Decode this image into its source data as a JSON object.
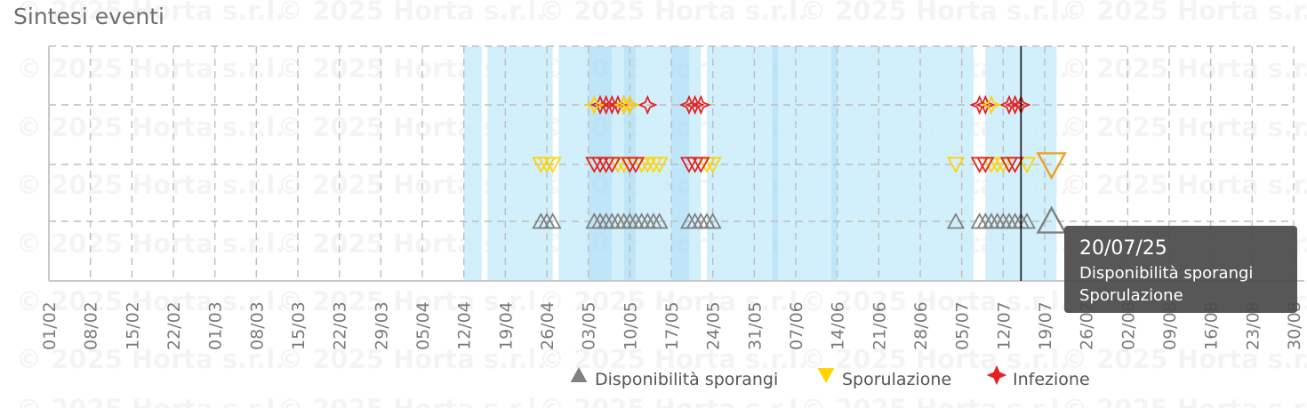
{
  "chart_data": {
    "type": "scatter",
    "title": "Sintesi eventi",
    "watermark": "© 2025 Horta s.r.l.",
    "x_axis": {
      "start": "2025-02-01",
      "end": "2025-08-30",
      "tick_labels": [
        "01/02",
        "08/02",
        "15/02",
        "22/02",
        "01/03",
        "08/03",
        "15/03",
        "22/03",
        "29/03",
        "05/04",
        "12/04",
        "19/04",
        "26/04",
        "03/05",
        "10/05",
        "17/05",
        "24/05",
        "31/05",
        "07/06",
        "14/06",
        "21/06",
        "28/06",
        "05/07",
        "12/07",
        "19/07",
        "26/07",
        "02/08",
        "09/08",
        "16/08",
        "23/08",
        "30/08"
      ]
    },
    "y_rows": 4,
    "grid": true,
    "legend_position": "bottom-right",
    "current_date": "2025-07-15",
    "shaded_periods": [
      {
        "start": "2025-04-12",
        "end": "2025-04-15",
        "strong": false
      },
      {
        "start": "2025-04-16",
        "end": "2025-04-27",
        "strong": false
      },
      {
        "start": "2025-04-28",
        "end": "2025-05-03",
        "strong": false
      },
      {
        "start": "2025-05-03",
        "end": "2025-05-07",
        "strong": true
      },
      {
        "start": "2025-05-07",
        "end": "2025-05-09",
        "strong": false
      },
      {
        "start": "2025-05-09",
        "end": "2025-05-11",
        "strong": true
      },
      {
        "start": "2025-05-11",
        "end": "2025-05-17",
        "strong": false
      },
      {
        "start": "2025-05-17",
        "end": "2025-05-20",
        "strong": true
      },
      {
        "start": "2025-05-20",
        "end": "2025-05-22",
        "strong": false
      },
      {
        "start": "2025-05-23",
        "end": "2025-06-03",
        "strong": false
      },
      {
        "start": "2025-06-03",
        "end": "2025-06-04",
        "strong": true
      },
      {
        "start": "2025-06-04",
        "end": "2025-06-13",
        "strong": false
      },
      {
        "start": "2025-06-13",
        "end": "2025-06-14",
        "strong": true
      },
      {
        "start": "2025-06-14",
        "end": "2025-07-07",
        "strong": false
      },
      {
        "start": "2025-07-09",
        "end": "2025-07-21",
        "strong": false
      }
    ],
    "series": [
      {
        "name": "Disponibilità sporangi",
        "symbol": "triangle-up",
        "color": "#808080",
        "row": 1,
        "x": [
          "2025-04-25",
          "2025-04-26",
          "2025-04-27",
          "2025-05-04",
          "2025-05-05",
          "2025-05-06",
          "2025-05-07",
          "2025-05-08",
          "2025-05-09",
          "2025-05-10",
          "2025-05-11",
          "2025-05-12",
          "2025-05-13",
          "2025-05-14",
          "2025-05-15",
          "2025-05-20",
          "2025-05-21",
          "2025-05-22",
          "2025-05-23",
          "2025-05-24",
          "2025-07-04",
          "2025-07-08",
          "2025-07-09",
          "2025-07-10",
          "2025-07-11",
          "2025-07-12",
          "2025-07-13",
          "2025-07-14",
          "2025-07-15",
          "2025-07-16"
        ],
        "highlighted": "2025-07-20"
      },
      {
        "name": "Sporulazione",
        "symbol": "triangle-down",
        "color": "#ffd400",
        "row": 2,
        "x": [
          "2025-04-25",
          "2025-04-26",
          "2025-04-27",
          "2025-05-04",
          "2025-05-06",
          "2025-05-08",
          "2025-05-09",
          "2025-05-10",
          "2025-05-12",
          "2025-05-13",
          "2025-05-14",
          "2025-05-15",
          "2025-05-22",
          "2025-05-23",
          "2025-05-24",
          "2025-07-04",
          "2025-07-09",
          "2025-07-10",
          "2025-07-11",
          "2025-07-12",
          "2025-07-14",
          "2025-07-16"
        ],
        "highlighted": "2025-07-20"
      },
      {
        "name": "Sporulazione",
        "symbol": "triangle-down",
        "color": "#e52020",
        "row": 2,
        "x": [
          "2025-05-04",
          "2025-05-05",
          "2025-05-06",
          "2025-05-07",
          "2025-05-10",
          "2025-05-11",
          "2025-05-20",
          "2025-05-21",
          "2025-05-22",
          "2025-07-08",
          "2025-07-09",
          "2025-07-13",
          "2025-07-14"
        ]
      },
      {
        "name": "Infezione",
        "symbol": "star4",
        "color": "#e52020",
        "row": 3,
        "x": [
          "2025-05-05",
          "2025-05-06",
          "2025-05-07",
          "2025-05-08",
          "2025-05-09",
          "2025-05-10",
          "2025-05-13",
          "2025-05-20",
          "2025-05-21",
          "2025-05-22",
          "2025-07-08",
          "2025-07-09",
          "2025-07-13",
          "2025-07-14",
          "2025-07-15"
        ]
      },
      {
        "name": "Infezione",
        "symbol": "star4",
        "color": "#ffd400",
        "row": 3,
        "x": [
          "2025-05-04",
          "2025-05-09",
          "2025-05-10",
          "2025-07-10"
        ]
      }
    ],
    "legend": [
      {
        "label": "Disponibilità sporangi",
        "symbol": "triangle-up",
        "color": "#808080"
      },
      {
        "label": "Sporulazione",
        "symbol": "triangle-down",
        "color": "#ffd400"
      },
      {
        "label": "Infezione",
        "symbol": "star4",
        "color": "#e52020"
      }
    ],
    "tooltip": {
      "date": "20/07/25",
      "lines": [
        "Disponibilità sporangi",
        "Sporulazione"
      ]
    }
  }
}
